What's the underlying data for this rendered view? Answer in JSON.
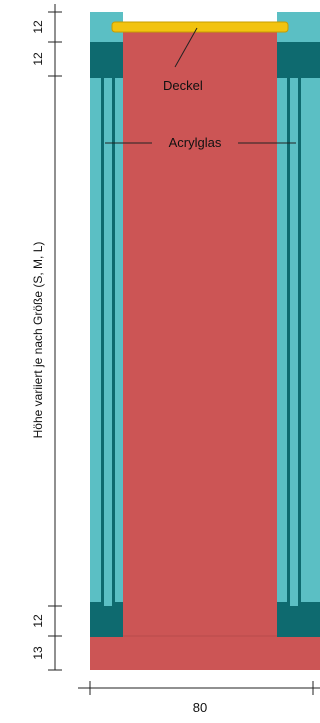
{
  "labels": {
    "lid": "Deckel",
    "glass": "Acrylglas",
    "height_note": "Höhe variiert je nach Größe (S, M, L)",
    "width": "80"
  },
  "dimensions": {
    "top_frame": "12",
    "top_inner": "12",
    "bottom_inner": "12",
    "base": "13"
  },
  "colors": {
    "background": "#ffffff",
    "light_teal": "#5bbfc4",
    "dark_teal": "#0e6a6f",
    "red": "#cc5555",
    "red_dark": "#b84a4a",
    "yellow": "#f2c30f",
    "dim_line": "#222222"
  }
}
